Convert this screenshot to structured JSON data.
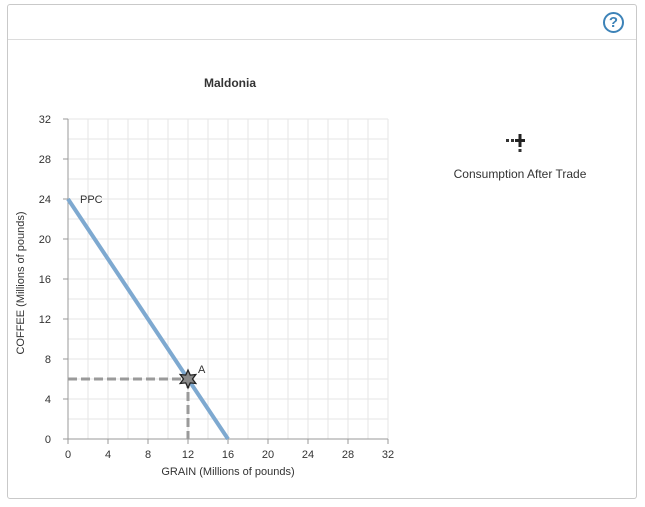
{
  "header": {
    "help_label": "?"
  },
  "tools": {
    "consumption_label": "Consumption After Trade"
  },
  "chart_data": {
    "type": "line",
    "title": "Maldonia",
    "xlabel": "GRAIN (Millions of pounds)",
    "ylabel": "COFFEE (Millions of pounds)",
    "xlim": [
      0,
      32
    ],
    "ylim": [
      0,
      32
    ],
    "xticks": [
      0,
      4,
      8,
      12,
      16,
      20,
      24,
      28,
      32
    ],
    "yticks": [
      0,
      4,
      8,
      12,
      16,
      20,
      24,
      28,
      32
    ],
    "grid": true,
    "series": [
      {
        "name": "PPC",
        "x": [
          0,
          16
        ],
        "y": [
          24,
          0
        ]
      }
    ],
    "points": [
      {
        "label": "A",
        "x": 12,
        "y": 6
      }
    ],
    "colors": {
      "ppc": "#7ea9d0",
      "guide": "#9a9a9a",
      "grid": "#e6e6e6",
      "axis": "#999999"
    }
  }
}
